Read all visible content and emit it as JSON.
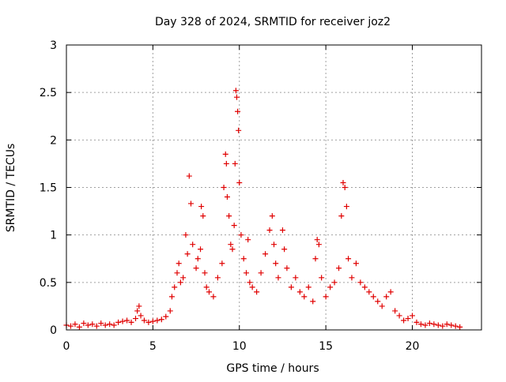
{
  "chart_data": {
    "type": "scatter",
    "title": "Day 328 of 2024, SRMTID for receiver joz2",
    "xlabel": "GPS time / hours",
    "ylabel": "SRMTID / TECUs",
    "xlim": [
      0,
      24
    ],
    "ylim": [
      0,
      3
    ],
    "grid": true,
    "marker": "+",
    "series": [
      {
        "name": "SRMTID",
        "color": "#e00000",
        "x": [
          0.0,
          0.25,
          0.5,
          0.75,
          1.0,
          1.25,
          1.5,
          1.75,
          2.0,
          2.25,
          2.5,
          2.75,
          3.0,
          3.25,
          3.5,
          3.75,
          4.0,
          4.1,
          4.2,
          4.3,
          4.5,
          4.75,
          5.0,
          5.25,
          5.5,
          5.75,
          6.0,
          6.1,
          6.25,
          6.4,
          6.5,
          6.6,
          6.75,
          6.9,
          7.0,
          7.1,
          7.2,
          7.3,
          7.5,
          7.6,
          7.75,
          7.8,
          7.9,
          8.0,
          8.1,
          8.25,
          8.5,
          8.75,
          9.0,
          9.1,
          9.2,
          9.25,
          9.3,
          9.4,
          9.5,
          9.6,
          9.7,
          9.75,
          9.8,
          9.85,
          9.9,
          9.95,
          10.0,
          10.1,
          10.25,
          10.4,
          10.5,
          10.6,
          10.75,
          11.0,
          11.25,
          11.5,
          11.75,
          11.9,
          12.0,
          12.1,
          12.25,
          12.5,
          12.6,
          12.75,
          13.0,
          13.25,
          13.5,
          13.75,
          14.0,
          14.25,
          14.4,
          14.5,
          14.6,
          14.75,
          15.0,
          15.25,
          15.5,
          15.75,
          15.9,
          16.0,
          16.1,
          16.2,
          16.3,
          16.5,
          16.75,
          17.0,
          17.25,
          17.5,
          17.75,
          18.0,
          18.25,
          18.5,
          18.75,
          19.0,
          19.25,
          19.5,
          19.75,
          20.0,
          20.25,
          20.5,
          20.75,
          21.0,
          21.25,
          21.5,
          21.75,
          22.0,
          22.25,
          22.5,
          22.75
        ],
        "y": [
          0.05,
          0.04,
          0.06,
          0.03,
          0.07,
          0.05,
          0.06,
          0.04,
          0.07,
          0.05,
          0.06,
          0.05,
          0.08,
          0.09,
          0.1,
          0.08,
          0.12,
          0.2,
          0.25,
          0.15,
          0.1,
          0.08,
          0.09,
          0.1,
          0.11,
          0.14,
          0.2,
          0.35,
          0.45,
          0.6,
          0.7,
          0.5,
          0.55,
          1.0,
          0.8,
          1.62,
          1.33,
          0.9,
          0.65,
          0.75,
          0.85,
          1.3,
          1.2,
          0.6,
          0.45,
          0.4,
          0.35,
          0.55,
          0.7,
          1.5,
          1.85,
          1.75,
          1.4,
          1.2,
          0.9,
          0.85,
          1.1,
          1.75,
          2.52,
          2.45,
          2.3,
          2.1,
          1.55,
          1.0,
          0.75,
          0.6,
          0.95,
          0.5,
          0.45,
          0.4,
          0.6,
          0.8,
          1.05,
          1.2,
          0.9,
          0.7,
          0.55,
          1.05,
          0.85,
          0.65,
          0.45,
          0.55,
          0.4,
          0.35,
          0.45,
          0.3,
          0.75,
          0.95,
          0.9,
          0.55,
          0.35,
          0.45,
          0.5,
          0.65,
          1.2,
          1.55,
          1.5,
          1.3,
          0.75,
          0.55,
          0.7,
          0.5,
          0.45,
          0.4,
          0.35,
          0.3,
          0.25,
          0.35,
          0.4,
          0.2,
          0.15,
          0.1,
          0.12,
          0.15,
          0.08,
          0.06,
          0.05,
          0.07,
          0.06,
          0.05,
          0.04,
          0.06,
          0.05,
          0.04,
          0.03
        ]
      }
    ],
    "xticks": [
      0,
      5,
      10,
      15,
      20
    ],
    "yticks": [
      0,
      0.5,
      1,
      1.5,
      2,
      2.5,
      3
    ],
    "ytick_labels": [
      "0",
      "0.5",
      "1",
      "1.5",
      "2",
      "2.5",
      "3"
    ],
    "xtick_labels": [
      "0",
      "5",
      "10",
      "15",
      "20"
    ]
  }
}
